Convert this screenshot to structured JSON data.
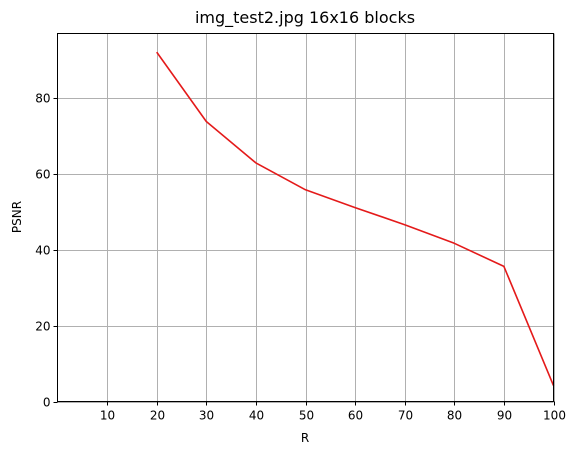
{
  "chart_data": {
    "type": "line",
    "title": "img_test2.jpg 16x16 blocks",
    "xlabel": "R",
    "ylabel": "PSNR",
    "xlim": [
      0,
      100
    ],
    "ylim": [
      0,
      97
    ],
    "xticks": [
      10,
      20,
      30,
      40,
      50,
      60,
      70,
      80,
      90,
      100
    ],
    "yticks": [
      0,
      20,
      40,
      60,
      80
    ],
    "grid": true,
    "series": [
      {
        "color": "#e41a1a",
        "x": [
          20,
          30,
          40,
          50,
          60,
          70,
          80,
          90,
          100
        ],
        "y": [
          92.1,
          73.8,
          62.9,
          55.8,
          51.1,
          46.6,
          41.7,
          35.6,
          4.2
        ]
      }
    ]
  }
}
